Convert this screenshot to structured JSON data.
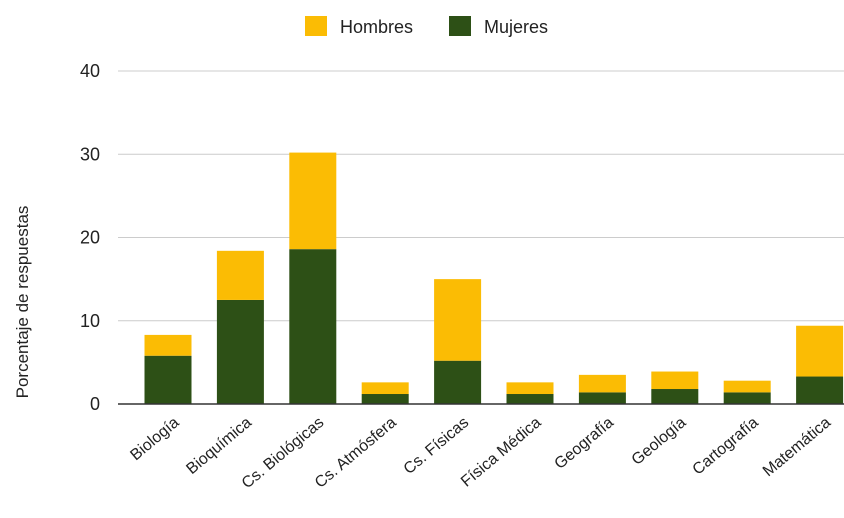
{
  "chart_data": {
    "type": "bar",
    "stacked": true,
    "categories": [
      "Biología",
      "Bioquímica",
      "Cs. Biológicas",
      "Cs. Atmósfera",
      "Cs. Físicas",
      "Física Médica",
      "Geografía",
      "Geología",
      "Cartografía",
      "Matemática"
    ],
    "series": [
      {
        "name": "Mujeres",
        "color": "#2d5016",
        "values": [
          5.8,
          12.5,
          18.6,
          1.2,
          5.2,
          1.2,
          1.4,
          1.8,
          1.4,
          3.3
        ]
      },
      {
        "name": "Hombres",
        "color": "#fbbc04",
        "values": [
          2.5,
          5.9,
          11.6,
          1.4,
          9.8,
          1.4,
          2.1,
          2.1,
          1.4,
          6.1
        ]
      }
    ],
    "legend": {
      "placement": "top-center",
      "order": [
        "Hombres",
        "Mujeres"
      ]
    },
    "ylabel": "Porcentaje de respuestas",
    "xlabel": "",
    "ylim": [
      0,
      40
    ],
    "yticks": [
      "0",
      "10",
      "20",
      "30",
      "40"
    ],
    "grid": true
  }
}
